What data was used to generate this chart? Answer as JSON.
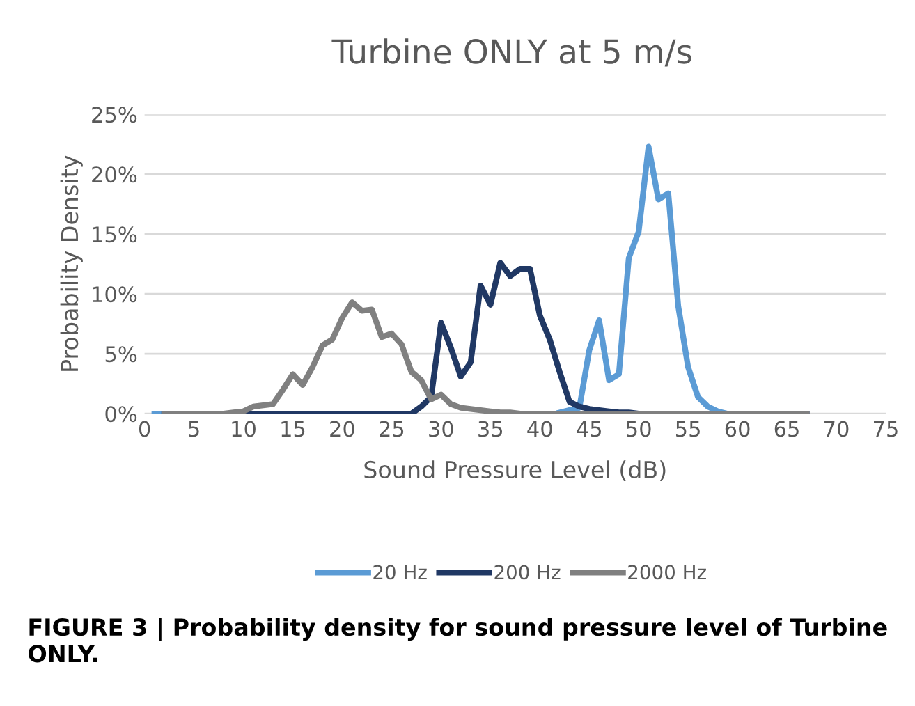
{
  "chart_data": {
    "type": "line",
    "title": "Turbine ONLY at 5 m/s",
    "xlabel": "Sound Pressure Level (dB)",
    "ylabel": "Probability Density",
    "x": [
      1,
      2,
      3,
      4,
      5,
      6,
      7,
      8,
      9,
      10,
      11,
      12,
      13,
      14,
      15,
      16,
      17,
      18,
      19,
      20,
      21,
      22,
      23,
      24,
      25,
      26,
      27,
      28,
      29,
      30,
      31,
      32,
      33,
      34,
      35,
      36,
      37,
      38,
      39,
      40,
      41,
      42,
      43,
      44,
      45,
      46,
      47,
      48,
      49,
      50,
      51,
      52,
      53,
      54,
      55,
      56,
      57,
      58,
      59,
      60,
      61,
      62,
      63,
      64,
      65,
      66,
      67
    ],
    "series": [
      {
        "name": "20 Hz",
        "color": "#5b9bd5",
        "values": [
          0,
          0,
          null,
          null,
          null,
          null,
          null,
          null,
          null,
          null,
          null,
          null,
          null,
          null,
          null,
          null,
          null,
          null,
          null,
          null,
          null,
          null,
          null,
          null,
          null,
          null,
          null,
          null,
          null,
          null,
          null,
          null,
          null,
          null,
          null,
          null,
          null,
          null,
          null,
          null,
          null,
          0.1,
          0.3,
          0.5,
          5.3,
          7.8,
          2.8,
          3.3,
          13.0,
          15.2,
          22.3,
          17.9,
          18.4,
          9.0,
          3.9,
          1.4,
          0.6,
          0.2,
          0,
          0,
          null,
          null,
          null,
          null,
          null,
          null,
          null
        ]
      },
      {
        "name": "200 Hz",
        "color": "#203864",
        "values": [
          null,
          0,
          0,
          0,
          0,
          0,
          0,
          0,
          0,
          0,
          0,
          0,
          0,
          0,
          0,
          0,
          0,
          0,
          0,
          0,
          0,
          0,
          0,
          0,
          0,
          0,
          0,
          0.6,
          1.4,
          7.6,
          5.5,
          3.1,
          4.3,
          10.7,
          9.1,
          12.6,
          11.5,
          12.1,
          12.1,
          8.2,
          6.2,
          3.5,
          1.0,
          0.6,
          0.4,
          0.3,
          0.2,
          0.1,
          0.1,
          0,
          0,
          0,
          0,
          0,
          0,
          0,
          0,
          0,
          0,
          0,
          0,
          0,
          0,
          0,
          0,
          0,
          0
        ]
      },
      {
        "name": "2000 Hz",
        "color": "#808080",
        "values": [
          null,
          0,
          0,
          0,
          0,
          0,
          0,
          0,
          0.1,
          0.2,
          0.6,
          0.7,
          0.8,
          2.0,
          3.3,
          2.4,
          3.9,
          5.7,
          6.2,
          8.0,
          9.3,
          8.6,
          8.7,
          6.4,
          6.7,
          5.8,
          3.5,
          2.8,
          1.2,
          1.6,
          0.8,
          0.5,
          0.4,
          0.3,
          0.2,
          0.1,
          0.1,
          0,
          0,
          0,
          0,
          0,
          0,
          0,
          0,
          0,
          0,
          0,
          0,
          0,
          0,
          0,
          0,
          0,
          0,
          0,
          0,
          0,
          0,
          0,
          0,
          0,
          0,
          0,
          0,
          0,
          0
        ]
      }
    ],
    "xlim": [
      0,
      75
    ],
    "xticks": [
      0,
      5,
      10,
      15,
      20,
      25,
      30,
      35,
      40,
      45,
      50,
      55,
      60,
      65,
      70,
      75
    ],
    "ylim": [
      0,
      25
    ],
    "yticks": [
      {
        "value": 0,
        "label": "0%"
      },
      {
        "value": 5,
        "label": "5%"
      },
      {
        "value": 10,
        "label": "10%"
      },
      {
        "value": 15,
        "label": "15%"
      },
      {
        "value": 20,
        "label": "20%"
      },
      {
        "value": 25,
        "label": "25%"
      }
    ],
    "grid": "y",
    "legend": "bottom",
    "marker": "none",
    "line_style": "solid",
    "annotations": [
      "FIGURE 3 | Probability density for sound pressure level of Turbine ONLY."
    ]
  }
}
